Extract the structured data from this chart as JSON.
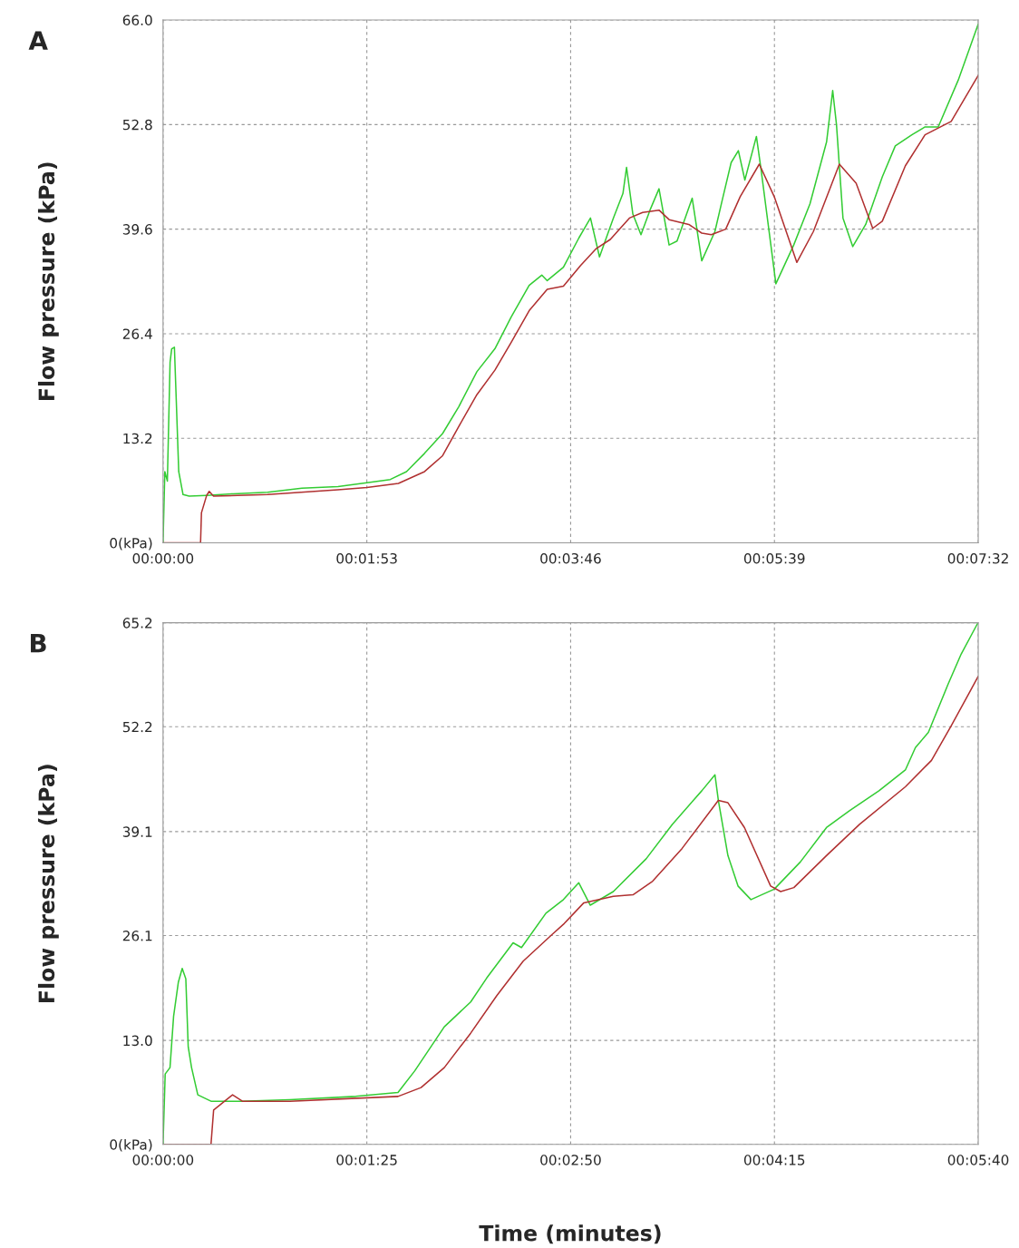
{
  "chart_data": [
    {
      "type": "line",
      "title": "A",
      "ylabel": "Flow pressure (kPa)",
      "grid": true,
      "line_style": "solid",
      "marker": "none",
      "xlim": [
        0,
        452
      ],
      "xticks": [
        {
          "value": 0,
          "label": "00:00:00"
        },
        {
          "value": 113,
          "label": "00:01:53"
        },
        {
          "value": 226,
          "label": "00:03:46"
        },
        {
          "value": 339,
          "label": "00:05:39"
        },
        {
          "value": 452,
          "label": "00:07:32"
        }
      ],
      "ylim": [
        0,
        66
      ],
      "yticks": [
        {
          "value": 0,
          "label": "0(kPa)"
        },
        13.2,
        26.4,
        39.6,
        52.8,
        {
          "value": 66,
          "label": "66.0"
        }
      ],
      "series": [
        {
          "color": "#33cc33",
          "x": [
            0,
            1,
            2.4,
            3.9,
            4.8,
            6.3,
            7.3,
            8.7,
            11.1,
            14.5,
            24,
            39,
            58,
            77,
            97,
            113,
            126,
            135,
            145,
            155,
            164,
            174,
            184,
            193,
            203,
            210,
            213,
            222,
            230.6,
            237,
            242,
            249.7,
            255,
            257,
            260.5,
            265,
            270,
            275,
            280.6,
            285,
            293.4,
            298.7,
            306,
            310,
            315,
            319,
            322.6,
            329,
            331.6,
            339.8,
            349.7,
            358.7,
            367.9,
            371.3,
            373.4,
            377,
            382.4,
            389.6,
            398.8,
            406,
            415.2,
            422.5,
            429.8,
            440.9,
            452
          ],
          "values": [
            0,
            9.0,
            7.8,
            22.8,
            24.5,
            24.7,
            18.2,
            9.0,
            6.1,
            5.9,
            6.0,
            6.2,
            6.4,
            6.9,
            7.1,
            7.6,
            8.0,
            9.0,
            11.3,
            13.8,
            17.2,
            21.6,
            24.5,
            28.5,
            32.5,
            33.8,
            33.1,
            34.8,
            38.5,
            41.0,
            36.1,
            41.0,
            44.1,
            47.4,
            41.5,
            38.9,
            42.0,
            44.7,
            37.6,
            38.1,
            43.5,
            35.6,
            39.3,
            43.2,
            48.0,
            49.5,
            45.8,
            51.3,
            47.1,
            32.7,
            37.6,
            42.8,
            50.6,
            57.1,
            52.8,
            41.0,
            37.4,
            40.2,
            46.2,
            50.1,
            51.5,
            52.5,
            52.5,
            58.4,
            65.5
          ]
        },
        {
          "color": "#b03030",
          "x": [
            0,
            20.8,
            21.3,
            24.2,
            25.6,
            28,
            58,
            97,
            113,
            130.5,
            145,
            155,
            164,
            174,
            184,
            193,
            203,
            213,
            222,
            231.5,
            240,
            248,
            258.6,
            265.9,
            275,
            280.6,
            291.5,
            298.7,
            304,
            312,
            320,
            330.6,
            338.9,
            351.4,
            360.6,
            375,
            384.3,
            393.5,
            398.8,
            411.6,
            422.5,
            437,
            452
          ],
          "values": [
            0,
            0,
            3.8,
            6.0,
            6.5,
            5.9,
            6.1,
            6.7,
            7.0,
            7.5,
            9.0,
            11.0,
            14.7,
            18.7,
            21.8,
            25.3,
            29.3,
            32.0,
            32.4,
            35.0,
            37.1,
            38.3,
            41.0,
            41.7,
            42.0,
            40.8,
            40.2,
            39.1,
            38.9,
            39.6,
            43.7,
            47.8,
            43.7,
            35.4,
            39.3,
            47.8,
            45.4,
            39.7,
            40.6,
            47.6,
            51.5,
            53.2,
            59.0
          ]
        }
      ]
    },
    {
      "type": "line",
      "title": "B",
      "ylabel": "Flow pressure (kPa)",
      "xlabel": "Time (minutes)",
      "grid": true,
      "line_style": "solid",
      "marker": "none",
      "xlim": [
        0,
        340
      ],
      "xticks": [
        {
          "value": 0,
          "label": "00:00:00"
        },
        {
          "value": 85,
          "label": "00:01:25"
        },
        {
          "value": 170,
          "label": "00:02:50"
        },
        {
          "value": 255,
          "label": "00:04:15"
        },
        {
          "value": 340,
          "label": "00:05:40"
        }
      ],
      "ylim": [
        0,
        65.2
      ],
      "yticks": [
        {
          "value": 0,
          "label": "0(kPa)"
        },
        {
          "value": 13,
          "label": "13.0"
        },
        26.1,
        39.1,
        52.2,
        65.2
      ],
      "series": [
        {
          "color": "#33cc33",
          "x": [
            0,
            0.9,
            2.9,
            4.4,
            6.4,
            8.0,
            9.5,
            10.5,
            11.9,
            14.5,
            20,
            32.4,
            52.9,
            80.4,
            98,
            105,
            117.3,
            128.3,
            135,
            146,
            149.5,
            159.7,
            167,
            173.4,
            178.2,
            187.8,
            201.5,
            212.4,
            224.7,
            230.2,
            231.6,
            235.6,
            239.8,
            245.2,
            254.9,
            265.8,
            276.7,
            286.3,
            298.6,
            309.6,
            313.8,
            319.2,
            327.4,
            332.9,
            339.7
          ],
          "values": [
            0,
            8.8,
            9.6,
            16.0,
            20.3,
            22.0,
            20.7,
            12.2,
            9.6,
            6.2,
            5.4,
            5.4,
            5.6,
            6.0,
            6.5,
            9.2,
            14.7,
            17.8,
            20.8,
            25.2,
            24.6,
            28.9,
            30.6,
            32.7,
            29.9,
            31.6,
            35.7,
            40.0,
            44.2,
            46.2,
            43.0,
            36.1,
            32.3,
            30.6,
            31.9,
            35.3,
            39.6,
            41.7,
            44.2,
            46.8,
            49.6,
            51.5,
            57.5,
            61.3,
            65.1
          ]
        },
        {
          "color": "#b03030",
          "x": [
            0,
            20,
            21.1,
            29,
            33.1,
            52.9,
            98,
            107.6,
            117.3,
            128.3,
            139.2,
            150.2,
            162.5,
            167.3,
            175.5,
            187.8,
            196,
            204.2,
            216.5,
            231.6,
            235.6,
            242.5,
            253.4,
            257.6,
            263.1,
            276.7,
            290.5,
            309.6,
            320.5,
            328.7,
            340
          ],
          "values": [
            0,
            0,
            4.3,
            6.2,
            5.4,
            5.4,
            6.0,
            7.1,
            9.6,
            13.9,
            18.6,
            22.9,
            26.3,
            27.6,
            30.2,
            31.0,
            31.2,
            32.9,
            37.0,
            43.0,
            42.7,
            39.6,
            32.3,
            31.6,
            32.1,
            36.1,
            40.0,
            44.7,
            48.0,
            52.3,
            58.5
          ]
        }
      ]
    }
  ]
}
